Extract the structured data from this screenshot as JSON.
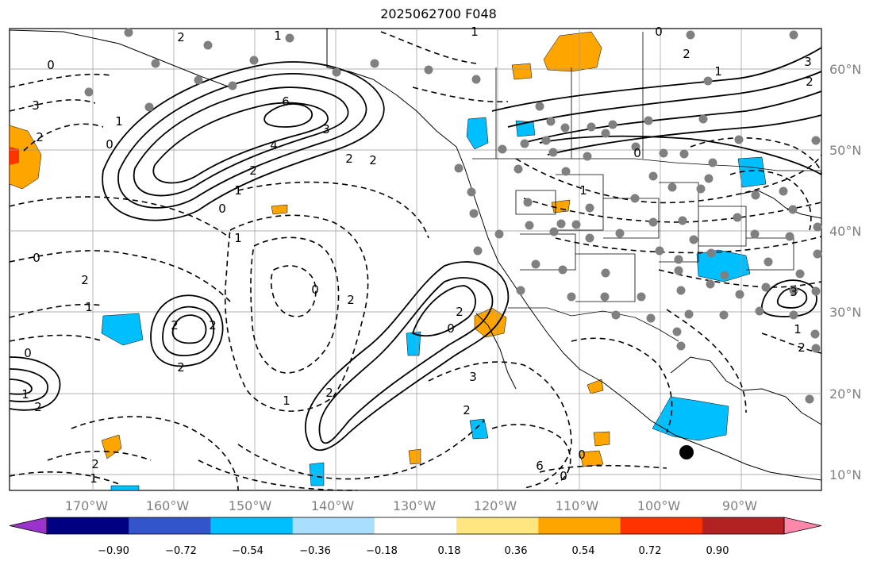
{
  "title": "2025062700 F048",
  "longitude_labels": [
    "170°W",
    "160°W",
    "150°W",
    "140°W",
    "130°W",
    "120°W",
    "110°W",
    "100°W",
    "90°W"
  ],
  "latitude_labels": [
    "60°N",
    "50°N",
    "40°N",
    "30°N",
    "20°N",
    "10°N"
  ],
  "colorbar": {
    "tick_labels": [
      "−0.90",
      "−0.72",
      "−0.54",
      "−0.36",
      "−0.18",
      "0.18",
      "0.36",
      "0.54",
      "0.72",
      "0.90"
    ],
    "colors": [
      "#9933cc",
      "#000080",
      "#3355cc",
      "#00bfff",
      "#aadeff",
      "#ffffff",
      "#ffe680",
      "#ffa500",
      "#ff3300",
      "#b22222",
      "#ff88aa"
    ]
  },
  "contour_labels": [
    "2",
    "1",
    "6",
    "3",
    "4",
    "2",
    "1",
    "0",
    "0",
    "2",
    "1",
    "3",
    "0",
    "2",
    "2",
    "1",
    "0",
    "2",
    "1",
    "3",
    "2",
    "1",
    "0",
    "0",
    "2",
    "1",
    "0",
    "1",
    "2",
    "1",
    "0",
    "2",
    "2",
    "0",
    "3",
    "2",
    "1",
    "2",
    "2",
    "2",
    "3",
    "1",
    "2",
    "0",
    "6",
    "0",
    "2",
    "1",
    "2"
  ]
}
